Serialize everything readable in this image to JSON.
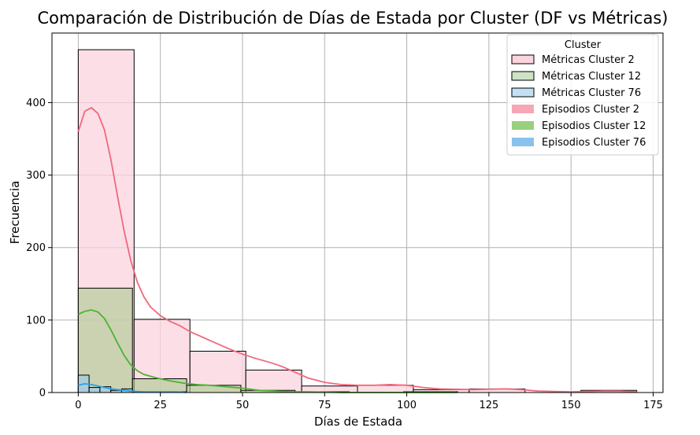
{
  "chart_data": {
    "type": "histogram-kde",
    "title": "Comparación de Distribución de Días de Estada por Cluster (DF vs Métricas)",
    "xlabel": "Días de Estada",
    "ylabel": "Frecuencia",
    "xlim": [
      -8,
      178
    ],
    "ylim": [
      0,
      496
    ],
    "x_ticks": [
      0,
      25,
      50,
      75,
      100,
      125,
      150,
      175
    ],
    "y_ticks": [
      0,
      100,
      200,
      300,
      400
    ],
    "grid": true,
    "legend": {
      "title": "Cluster",
      "placement": "top-right",
      "entries": [
        {
          "label": "Métricas Cluster 2",
          "kind": "patch",
          "color": "#fbd4dd",
          "edge": "#000000"
        },
        {
          "label": "Métricas Cluster 12",
          "kind": "patch",
          "color": "#cde3c5",
          "edge": "#000000"
        },
        {
          "label": "Métricas Cluster 76",
          "kind": "patch",
          "color": "#c2dff3",
          "edge": "#000000"
        },
        {
          "label": "Episodios Cluster 2",
          "kind": "fill",
          "color": "#f5a7b5"
        },
        {
          "label": "Episodios Cluster 12",
          "kind": "fill",
          "color": "#98d07f"
        },
        {
          "label": "Episodios Cluster 76",
          "kind": "fill",
          "color": "#87c3ec"
        }
      ]
    },
    "histograms": [
      {
        "series": "Métricas Cluster 2",
        "color": "#fbd4dd",
        "alpha": 0.75,
        "bins": [
          {
            "x0": 0,
            "x1": 17,
            "count": 473
          },
          {
            "x0": 17,
            "x1": 34,
            "count": 101
          },
          {
            "x0": 34,
            "x1": 51,
            "count": 57
          },
          {
            "x0": 51,
            "x1": 68,
            "count": 31
          },
          {
            "x0": 68,
            "x1": 85,
            "count": 9
          },
          {
            "x0": 85,
            "x1": 102,
            "count": 10
          },
          {
            "x0": 102,
            "x1": 119,
            "count": 4
          },
          {
            "x0": 119,
            "x1": 136,
            "count": 5
          },
          {
            "x0": 136,
            "x1": 153,
            "count": 0
          },
          {
            "x0": 153,
            "x1": 170,
            "count": 3
          }
        ]
      },
      {
        "series": "Métricas Cluster 12",
        "color": "#adc98f",
        "alpha": 0.62,
        "bins": [
          {
            "x0": 0,
            "x1": 16.5,
            "count": 144
          },
          {
            "x0": 16.5,
            "x1": 33,
            "count": 19
          },
          {
            "x0": 33,
            "x1": 49.5,
            "count": 10
          },
          {
            "x0": 49.5,
            "x1": 66,
            "count": 3
          },
          {
            "x0": 66,
            "x1": 82.5,
            "count": 1
          },
          {
            "x0": 82.5,
            "x1": 99,
            "count": 0
          },
          {
            "x0": 99,
            "x1": 115.5,
            "count": 1
          }
        ]
      },
      {
        "series": "Métricas Cluster 76",
        "color": "#9ccbe9",
        "alpha": 0.7,
        "bins": [
          {
            "x0": 0,
            "x1": 3.3,
            "count": 24
          },
          {
            "x0": 3.3,
            "x1": 6.6,
            "count": 7
          },
          {
            "x0": 6.6,
            "x1": 9.9,
            "count": 8
          },
          {
            "x0": 9.9,
            "x1": 13.2,
            "count": 3
          },
          {
            "x0": 13.2,
            "x1": 16.5,
            "count": 5
          },
          {
            "x0": 16.5,
            "x1": 19.8,
            "count": 1
          },
          {
            "x0": 19.8,
            "x1": 23.1,
            "count": 1
          },
          {
            "x0": 23.1,
            "x1": 26.4,
            "count": 0
          },
          {
            "x0": 26.4,
            "x1": 29.7,
            "count": 0
          },
          {
            "x0": 29.7,
            "x1": 33,
            "count": 1
          }
        ]
      }
    ],
    "kde_curves": [
      {
        "series": "Cluster 2",
        "color": "#f0687d",
        "points": [
          [
            0,
            360
          ],
          [
            2,
            388
          ],
          [
            4,
            393
          ],
          [
            6,
            385
          ],
          [
            8,
            362
          ],
          [
            10,
            320
          ],
          [
            12,
            270
          ],
          [
            14,
            222
          ],
          [
            16,
            182
          ],
          [
            18,
            152
          ],
          [
            20,
            132
          ],
          [
            22,
            118
          ],
          [
            25,
            106
          ],
          [
            28,
            98
          ],
          [
            31,
            92
          ],
          [
            34,
            84
          ],
          [
            37,
            78
          ],
          [
            40,
            72
          ],
          [
            43,
            66
          ],
          [
            46,
            60
          ],
          [
            50,
            53
          ],
          [
            54,
            47
          ],
          [
            58,
            42
          ],
          [
            62,
            36
          ],
          [
            66,
            28
          ],
          [
            70,
            20
          ],
          [
            75,
            14
          ],
          [
            80,
            11
          ],
          [
            85,
            10
          ],
          [
            90,
            10
          ],
          [
            95,
            11
          ],
          [
            100,
            10
          ],
          [
            105,
            7
          ],
          [
            110,
            5
          ],
          [
            120,
            4
          ],
          [
            130,
            5
          ],
          [
            135,
            4
          ],
          [
            140,
            2
          ],
          [
            150,
            1
          ],
          [
            160,
            2
          ],
          [
            165,
            2
          ],
          [
            170,
            1
          ]
        ]
      },
      {
        "series": "Cluster 12",
        "color": "#4cb233",
        "points": [
          [
            0,
            108
          ],
          [
            2,
            112
          ],
          [
            4,
            114
          ],
          [
            6,
            111
          ],
          [
            8,
            102
          ],
          [
            10,
            86
          ],
          [
            12,
            68
          ],
          [
            14,
            51
          ],
          [
            16,
            38
          ],
          [
            18,
            30
          ],
          [
            20,
            25
          ],
          [
            24,
            20
          ],
          [
            28,
            16
          ],
          [
            32,
            13
          ],
          [
            36,
            11
          ],
          [
            40,
            10
          ],
          [
            45,
            8
          ],
          [
            50,
            6
          ],
          [
            55,
            3
          ],
          [
            60,
            2
          ],
          [
            65,
            1
          ],
          [
            70,
            1
          ],
          [
            80,
            0
          ],
          [
            90,
            0
          ],
          [
            100,
            0
          ],
          [
            110,
            0
          ],
          [
            115,
            0
          ]
        ]
      },
      {
        "series": "Cluster 76",
        "color": "#2f9fe0",
        "points": [
          [
            0,
            10
          ],
          [
            2,
            12
          ],
          [
            4,
            11
          ],
          [
            6,
            9
          ],
          [
            8,
            7
          ],
          [
            10,
            5
          ],
          [
            12,
            4
          ],
          [
            14,
            3
          ],
          [
            16,
            2
          ],
          [
            20,
            1
          ],
          [
            25,
            1
          ],
          [
            30,
            1
          ],
          [
            33,
            0
          ]
        ]
      }
    ]
  }
}
